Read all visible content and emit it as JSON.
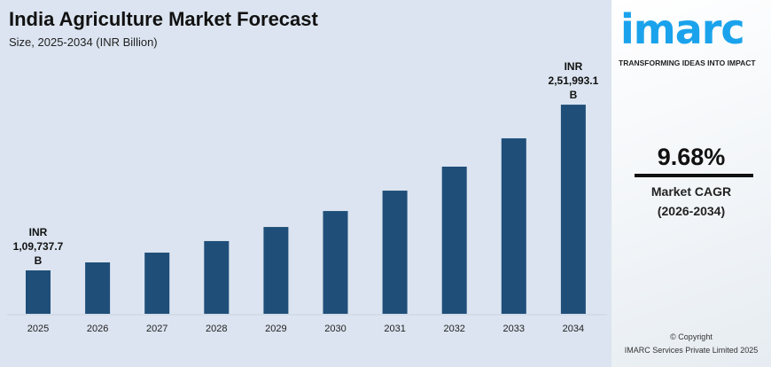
{
  "header": {
    "title": "India Agriculture Market Forecast",
    "subtitle": "Size, 2025-2034 (INR Billion)"
  },
  "chart_data": {
    "type": "bar",
    "categories": [
      "2025",
      "2026",
      "2027",
      "2028",
      "2029",
      "2030",
      "2031",
      "2032",
      "2033",
      "2034"
    ],
    "values": [
      109737.7,
      116600,
      125000,
      134900,
      147000,
      160700,
      178200,
      198800,
      223100,
      251993.1
    ],
    "data_labels": {
      "first": [
        "INR",
        "1,09,737.7",
        "B"
      ],
      "last": [
        "INR",
        "2,51,993.1",
        "B"
      ]
    },
    "ylim": [
      72459,
      260000
    ],
    "grid": false,
    "color": "#1f4e79"
  },
  "sidebar": {
    "logo": "imarc",
    "tagline": "TRANSFORMING IDEAS INTO IMPACT",
    "cagr_value": "9.68%",
    "cagr_label": "Market CAGR",
    "cagr_period": "(2026-2034)",
    "copyright": "© Copyright",
    "company": "IMARC Services Private Limited 2025"
  }
}
